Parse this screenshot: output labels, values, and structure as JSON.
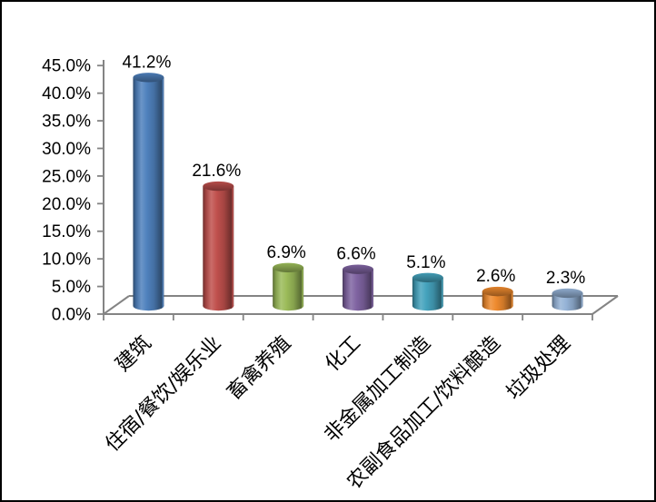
{
  "chart_data": {
    "type": "bar",
    "subtype": "3d-cylinder",
    "title": "",
    "xlabel": "",
    "ylabel": "",
    "categories": [
      "建筑",
      "住宿/餐饮/娱乐业",
      "畜禽养殖",
      "化工",
      "非金属加工制造",
      "农副食品加工/饮料酿造",
      "垃圾处理"
    ],
    "values": [
      41.2,
      21.6,
      6.9,
      6.6,
      5.1,
      2.6,
      2.3
    ],
    "value_labels": [
      "41.2%",
      "21.6%",
      "6.9%",
      "6.6%",
      "5.1%",
      "2.6%",
      "2.3%"
    ],
    "bar_colors": [
      "#4F81BD",
      "#C0504D",
      "#9BBB59",
      "#8064A2",
      "#45A3BD",
      "#EE8A2E",
      "#95B3D7"
    ],
    "y_axis": {
      "min": 0,
      "max": 45,
      "step": 5,
      "tick_labels": [
        "0.0%",
        "5.0%",
        "10.0%",
        "15.0%",
        "20.0%",
        "25.0%",
        "30.0%",
        "35.0%",
        "40.0%",
        "45.0%"
      ]
    },
    "grid": false,
    "legend": false,
    "category_label_rotation_deg": -45,
    "axis_color": "#848484",
    "text_color": "#000000",
    "frame_border_color": "#000000",
    "background_color": "#ffffff"
  }
}
